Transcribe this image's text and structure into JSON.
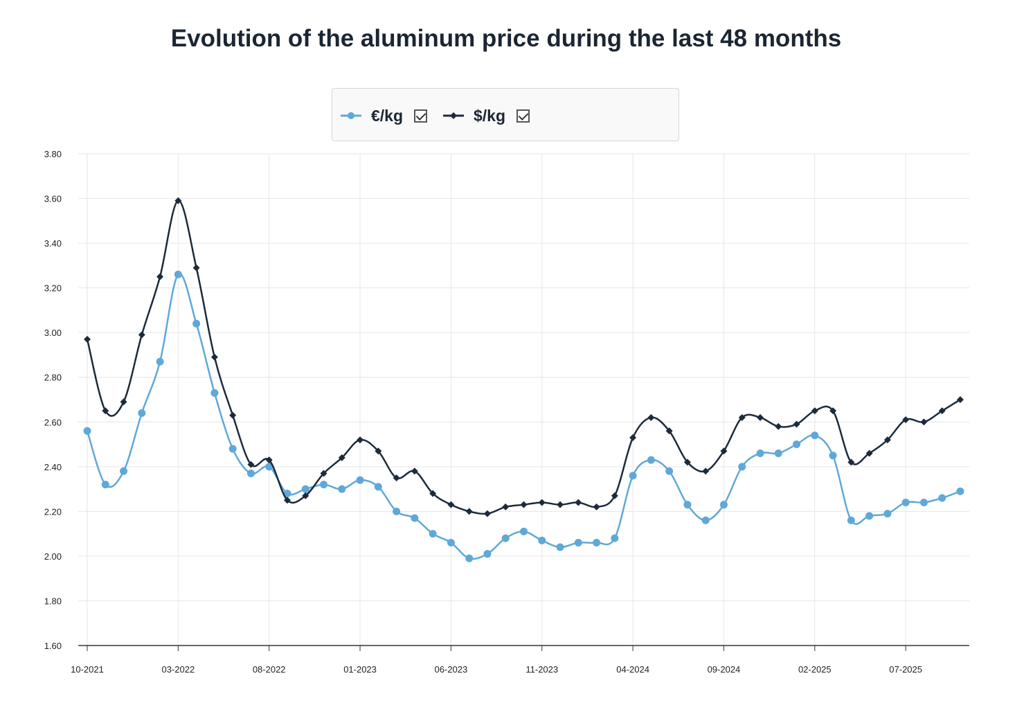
{
  "chart_data": {
    "type": "line",
    "title": "Evolution of the aluminum price during the last 48 months",
    "xlabel": "",
    "ylabel": "",
    "ylim": [
      1.6,
      3.8
    ],
    "yticks": [
      "1.60",
      "1.80",
      "2.00",
      "2.20",
      "2.40",
      "2.60",
      "2.80",
      "3.00",
      "3.20",
      "3.40",
      "3.60",
      "3.80"
    ],
    "xticks": [
      "10-2021",
      "03-2022",
      "08-2022",
      "01-2023",
      "06-2023",
      "11-2023",
      "04-2024",
      "09-2024",
      "02-2025",
      "07-2025"
    ],
    "x_start": "10-2021",
    "x_end": "10-2025",
    "grid": true,
    "legend_placement": "top-center",
    "series": [
      {
        "name": "€/kg",
        "color": "#5fa8d8",
        "marker": "circle",
        "checked": true,
        "values": [
          2.56,
          2.32,
          2.38,
          2.64,
          2.87,
          3.26,
          3.04,
          2.73,
          2.48,
          2.37,
          2.4,
          2.28,
          2.3,
          2.32,
          2.3,
          2.34,
          2.31,
          2.2,
          2.17,
          2.1,
          2.06,
          1.99,
          2.01,
          2.08,
          2.11,
          2.07,
          2.04,
          2.06,
          2.06,
          2.08,
          2.36,
          2.43,
          2.38,
          2.23,
          2.16,
          2.23,
          2.4,
          2.46,
          2.46,
          2.5,
          2.54,
          2.45,
          2.16,
          2.18,
          2.19,
          2.24,
          2.24,
          2.26,
          2.29
        ]
      },
      {
        "name": "$/kg",
        "color": "#1c2b3a",
        "marker": "diamond",
        "checked": true,
        "values": [
          2.97,
          2.65,
          2.69,
          2.99,
          3.25,
          3.59,
          3.29,
          2.89,
          2.63,
          2.41,
          2.43,
          2.25,
          2.27,
          2.37,
          2.44,
          2.52,
          2.47,
          2.35,
          2.38,
          2.28,
          2.23,
          2.2,
          2.19,
          2.22,
          2.23,
          2.24,
          2.23,
          2.24,
          2.22,
          2.27,
          2.53,
          2.62,
          2.56,
          2.42,
          2.38,
          2.47,
          2.62,
          2.62,
          2.58,
          2.59,
          2.65,
          2.65,
          2.42,
          2.46,
          2.52,
          2.61,
          2.6,
          2.65,
          2.7
        ]
      }
    ]
  }
}
